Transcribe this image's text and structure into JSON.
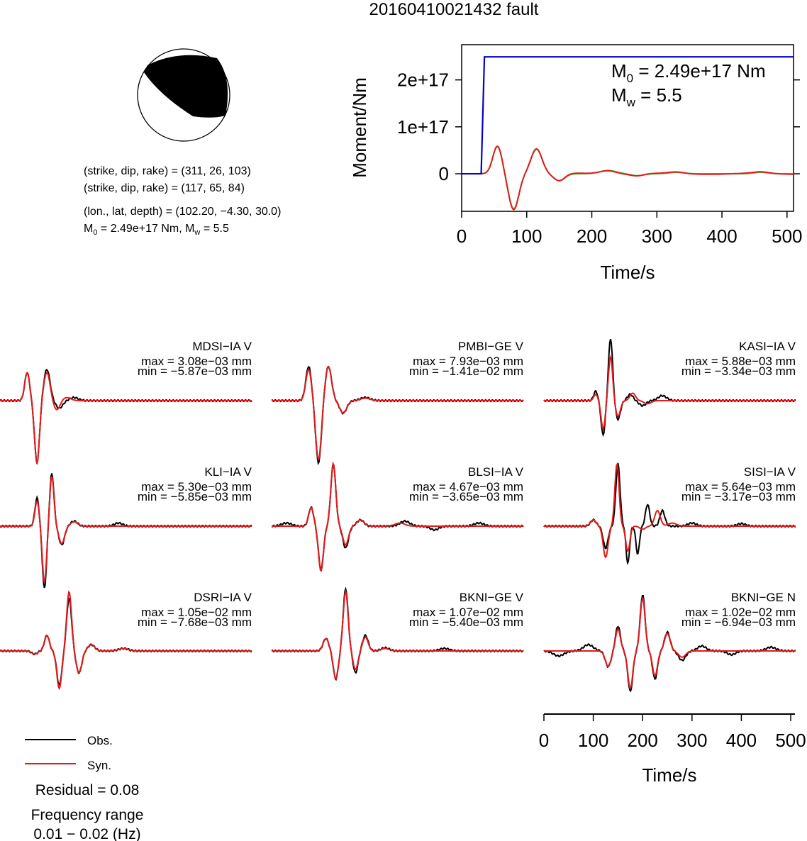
{
  "title": "20160410021432 fault",
  "mechanism": {
    "planes": [
      {
        "label": "(strike, dip, rake)",
        "values": "(311, 26, 103)"
      },
      {
        "label": "(strike, dip, rake)",
        "values": "(117, 65, 84)"
      }
    ],
    "location": {
      "label": "(lon., lat, depth)",
      "values": "(102.20, −4.30, 30.0)"
    },
    "m0_prefix": "M",
    "m0_sub": "0",
    "m0_value": " = 2.49e+17 Nm,",
    "mw_prefix": " M",
    "mw_sub": "w",
    "mw_value": " = 5.5"
  },
  "moment_plot": {
    "ylabel": "Moment/Nm",
    "xlabel": "Time/s",
    "annotation_m0_prefix": "M",
    "annotation_m0_sub": "0",
    "annotation_m0_value": " = 2.49e+17 Nm",
    "annotation_mw_prefix": "M",
    "annotation_mw_sub": "w",
    "annotation_mw_value": " = 5.5"
  },
  "waveform_axis": {
    "xlabel": "Time/s"
  },
  "legend": {
    "obs_label": "Obs.",
    "syn_label": "Syn.",
    "residual": "Residual = 0.08",
    "freq_title": "Frequency range",
    "freq_range": "0.01 − 0.02 (Hz)"
  },
  "colors": {
    "observed": "#000000",
    "synthetic": "#e31a1c",
    "moment": "#0000cc",
    "green_trace": "#33cc33"
  },
  "chart_data": [
    {
      "type": "line",
      "name": "moment",
      "title": "",
      "xlabel": "Time/s",
      "ylabel": "Moment/Nm",
      "xlim": [
        0,
        510
      ],
      "ylim": [
        -8e+16,
        2.75e+17
      ],
      "xticks": [
        0,
        100,
        200,
        300,
        400,
        500
      ],
      "xtick_labels": [
        "0",
        "100",
        "200",
        "300",
        "400",
        "500"
      ],
      "yticks": [
        0,
        1e+17,
        2e+17
      ],
      "ytick_labels": [
        "0",
        "1e+17",
        "2e+17"
      ],
      "step": {
        "t_start": 30,
        "t_end": 35,
        "value": 2.49e+17
      },
      "trace_pulses": [
        {
          "t": 55,
          "amp": 5.8e+16,
          "w": 10
        },
        {
          "t": 80,
          "amp": -7.5e+16,
          "w": 11
        },
        {
          "t": 115,
          "amp": 5.2e+16,
          "w": 12
        },
        {
          "t": 150,
          "amp": -1.5e+16,
          "w": 12
        },
        {
          "t": 225,
          "amp": 7000000000000000.0,
          "w": 18
        },
        {
          "t": 270,
          "amp": -4000000000000000.0,
          "w": 14
        },
        {
          "t": 330,
          "amp": 3000000000000000.0,
          "w": 16
        },
        {
          "t": 460,
          "amp": 3000000000000000.0,
          "w": 16
        }
      ]
    },
    {
      "type": "line",
      "name": "waveforms",
      "xlabel": "Time/s",
      "xlim": [
        0,
        510
      ],
      "xticks": [
        0,
        100,
        200,
        300,
        400,
        500
      ],
      "xtick_labels": [
        "0",
        "100",
        "200",
        "300",
        "400",
        "500"
      ],
      "legend": [
        "Obs.",
        "Syn."
      ],
      "stations": [
        {
          "name": "MDSI−IA V",
          "max": "max = 3.08e−03 mm",
          "min": "min = −5.87e−03 mm",
          "obs": [
            [
              55,
              0.45,
              7
            ],
            [
              75,
              -1.0,
              7
            ],
            [
              95,
              0.5,
              9
            ],
            [
              120,
              -0.12,
              10
            ],
            [
              150,
              0.05,
              12
            ]
          ],
          "syn": [
            [
              55,
              0.45,
              7
            ],
            [
              75,
              -1.0,
              7
            ],
            [
              95,
              0.45,
              9
            ],
            [
              115,
              -0.15,
              9
            ],
            [
              135,
              0.05,
              12
            ]
          ]
        },
        {
          "name": "PMBI−GE V",
          "max": "max = 7.93e−03 mm",
          "min": "min = −1.41e−02 mm",
          "obs": [
            [
              75,
              0.55,
              8
            ],
            [
              95,
              -1.0,
              8
            ],
            [
              115,
              0.55,
              9
            ],
            [
              145,
              -0.2,
              10
            ],
            [
              190,
              0.05,
              14
            ]
          ],
          "syn": [
            [
              75,
              0.5,
              8
            ],
            [
              95,
              -0.95,
              8
            ],
            [
              115,
              0.55,
              9
            ],
            [
              145,
              -0.2,
              10
            ],
            [
              190,
              0.04,
              14
            ]
          ]
        },
        {
          "name": "KASI−IA V",
          "max": "max = 5.88e−03 mm",
          "min": "min = −3.34e−03 mm",
          "obs": [
            [
              105,
              0.15,
              6
            ],
            [
              120,
              -0.55,
              6
            ],
            [
              135,
              1.0,
              6
            ],
            [
              150,
              -0.3,
              7
            ],
            [
              175,
              0.1,
              8
            ],
            [
              200,
              -0.08,
              10
            ],
            [
              240,
              0.08,
              12
            ]
          ],
          "syn": [
            [
              105,
              0.1,
              6
            ],
            [
              120,
              -0.45,
              6
            ],
            [
              135,
              0.7,
              6
            ],
            [
              150,
              -0.25,
              7
            ],
            [
              180,
              0.12,
              8
            ],
            [
              210,
              -0.05,
              10
            ]
          ]
        },
        {
          "name": "KLI−IA V",
          "max": "max = 5.30e−03 mm",
          "min": "min = −5.85e−03 mm",
          "obs": [
            [
              75,
              0.45,
              6
            ],
            [
              90,
              -1.0,
              6
            ],
            [
              105,
              0.85,
              6
            ],
            [
              125,
              -0.3,
              8
            ],
            [
              150,
              0.08,
              10
            ],
            [
              240,
              0.05,
              12
            ]
          ],
          "syn": [
            [
              75,
              0.4,
              6
            ],
            [
              90,
              -0.9,
              6
            ],
            [
              105,
              0.8,
              6
            ],
            [
              125,
              -0.28,
              8
            ],
            [
              150,
              0.07,
              10
            ]
          ]
        },
        {
          "name": "BLSI−IA V",
          "max": "max = 4.67e−03 mm",
          "min": "min = −3.65e−03 mm",
          "obs": [
            [
              30,
              0.05,
              14
            ],
            [
              80,
              0.3,
              7
            ],
            [
              100,
              -0.7,
              7
            ],
            [
              125,
              1.0,
              7
            ],
            [
              150,
              -0.35,
              8
            ],
            [
              180,
              0.1,
              10
            ],
            [
              270,
              0.08,
              14
            ],
            [
              330,
              -0.06,
              12
            ],
            [
              420,
              0.05,
              14
            ]
          ],
          "syn": [
            [
              80,
              0.3,
              7
            ],
            [
              100,
              -0.72,
              7
            ],
            [
              125,
              1.0,
              7
            ],
            [
              150,
              -0.3,
              8
            ],
            [
              180,
              0.1,
              10
            ],
            [
              260,
              0.05,
              14
            ]
          ]
        },
        {
          "name": "SISI−IA V",
          "max": "max = 5.64e−03 mm",
          "min": "min = −3.17e−03 mm",
          "obs": [
            [
              100,
              0.1,
              8
            ],
            [
              125,
              -0.35,
              7
            ],
            [
              150,
              1.0,
              6
            ],
            [
              170,
              -0.6,
              5
            ],
            [
              190,
              -0.45,
              5
            ],
            [
              210,
              0.35,
              6
            ],
            [
              240,
              0.25,
              7
            ],
            [
              300,
              0.05,
              12
            ],
            [
              400,
              0.04,
              12
            ]
          ],
          "syn": [
            [
              100,
              0.1,
              8
            ],
            [
              125,
              -0.5,
              7
            ],
            [
              148,
              1.0,
              6
            ],
            [
              170,
              -0.4,
              6
            ],
            [
              200,
              -0.05,
              8
            ],
            [
              230,
              0.25,
              8
            ],
            [
              260,
              0.05,
              12
            ]
          ]
        },
        {
          "name": "DSRI−IA V",
          "max": "max = 1.05e−02 mm",
          "min": "min = −7.68e−03 mm",
          "obs": [
            [
              70,
              -0.05,
              8
            ],
            [
              95,
              0.25,
              7
            ],
            [
              120,
              -0.55,
              7
            ],
            [
              140,
              0.85,
              7
            ],
            [
              160,
              -0.35,
              8
            ],
            [
              185,
              0.1,
              10
            ],
            [
              250,
              0.04,
              14
            ]
          ],
          "syn": [
            [
              70,
              -0.05,
              8
            ],
            [
              95,
              0.25,
              7
            ],
            [
              120,
              -0.6,
              7
            ],
            [
              140,
              0.95,
              7
            ],
            [
              160,
              -0.35,
              8
            ],
            [
              185,
              0.1,
              10
            ],
            [
              250,
              0.04,
              14
            ]
          ]
        },
        {
          "name": "BKNI−GE V",
          "max": "max = 1.07e−02 mm",
          "min": "min = −5.40e−03 mm",
          "obs": [
            [
              110,
              0.2,
              8
            ],
            [
              130,
              -0.45,
              7
            ],
            [
              150,
              1.0,
              7
            ],
            [
              170,
              -0.35,
              7
            ],
            [
              190,
              0.25,
              8
            ],
            [
              230,
              0.05,
              12
            ],
            [
              350,
              0.04,
              14
            ]
          ],
          "syn": [
            [
              110,
              0.2,
              8
            ],
            [
              130,
              -0.45,
              7
            ],
            [
              150,
              0.95,
              7
            ],
            [
              170,
              -0.3,
              7
            ],
            [
              190,
              0.22,
              8
            ],
            [
              230,
              0.04,
              12
            ]
          ]
        },
        {
          "name": "BKNI−GE N",
          "max": "max = 1.02e−02 mm",
          "min": "min = −6.94e−03 mm",
          "obs": [
            [
              30,
              -0.08,
              15
            ],
            [
              90,
              0.1,
              14
            ],
            [
              130,
              -0.25,
              8
            ],
            [
              150,
              0.4,
              7
            ],
            [
              175,
              -0.65,
              7
            ],
            [
              200,
              0.9,
              7
            ],
            [
              225,
              -0.45,
              7
            ],
            [
              250,
              0.3,
              8
            ],
            [
              280,
              -0.15,
              10
            ],
            [
              320,
              0.08,
              12
            ],
            [
              380,
              -0.06,
              12
            ],
            [
              460,
              0.06,
              14
            ]
          ],
          "syn": [
            [
              130,
              -0.25,
              8
            ],
            [
              150,
              0.35,
              7
            ],
            [
              175,
              -0.6,
              7
            ],
            [
              200,
              0.85,
              7
            ],
            [
              225,
              -0.4,
              7
            ],
            [
              250,
              0.28,
              8
            ],
            [
              280,
              -0.1,
              10
            ]
          ]
        }
      ]
    }
  ]
}
